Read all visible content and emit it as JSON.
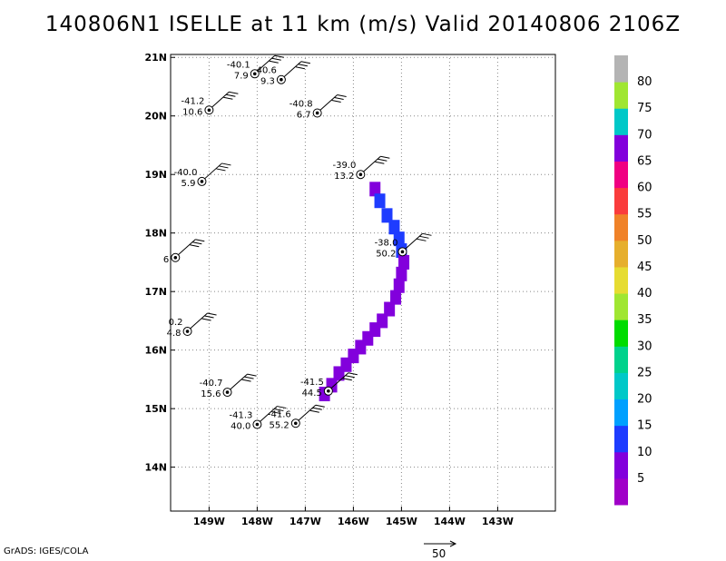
{
  "title": "140806N1 ISELLE at 11 km (m/s) Valid 20140806 2106Z",
  "credit": "GrADS: IGES/COLA",
  "chart_data": {
    "type": "scatter",
    "title": "140806N1 ISELLE at 11 km (m/s) Valid 20140806 2106Z",
    "xlim": [
      -149.8,
      -141.8
    ],
    "ylim": [
      13.25,
      21.05
    ],
    "xticks": [
      -149,
      -148,
      -147,
      -146,
      -145,
      -144,
      -143
    ],
    "xtick_labels": [
      "149W",
      "148W",
      "147W",
      "146W",
      "145W",
      "144W",
      "143W"
    ],
    "yticks": [
      14,
      15,
      16,
      17,
      18,
      19,
      20,
      21
    ],
    "ytick_labels": [
      "14N",
      "15N",
      "16N",
      "17N",
      "18N",
      "19N",
      "20N",
      "21N"
    ],
    "grid": true,
    "colorbar": {
      "labels": [
        "5",
        "10",
        "15",
        "20",
        "25",
        "30",
        "35",
        "40",
        "45",
        "50",
        "55",
        "60",
        "65",
        "70",
        "75",
        "80"
      ],
      "colors": [
        "#a000c8",
        "#8200dc",
        "#1e3cff",
        "#00a0ff",
        "#00c8c8",
        "#00d28c",
        "#00dc00",
        "#a0e632",
        "#e6dc32",
        "#e6af2d",
        "#f08228",
        "#fa3c3c",
        "#f00082",
        "#8200dc",
        "#00c8c8",
        "#a0e632",
        "#b4b4b4"
      ]
    },
    "stations": [
      {
        "lon": -148.05,
        "lat": 20.72,
        "temp": "-40.1",
        "speed": "7.9"
      },
      {
        "lon": -147.5,
        "lat": 20.62,
        "temp": "40.6",
        "speed": "9.3"
      },
      {
        "lon": -149.0,
        "lat": 20.1,
        "temp": "-41.2",
        "speed": "10.6"
      },
      {
        "lon": -146.75,
        "lat": 20.05,
        "temp": "-40.8",
        "speed": "6.7"
      },
      {
        "lon": -149.15,
        "lat": 18.88,
        "temp": "-40.0",
        "speed": "5.9"
      },
      {
        "lon": -145.85,
        "lat": 19.0,
        "temp": "-39.0",
        "speed": "13.2"
      },
      {
        "lon": -149.7,
        "lat": 17.58,
        "temp": "",
        "speed": "6"
      },
      {
        "lon": -144.98,
        "lat": 17.68,
        "temp": "-38.0",
        "speed": "50.2"
      },
      {
        "lon": -149.45,
        "lat": 16.32,
        "temp": "0.2",
        "speed": "4.8"
      },
      {
        "lon": -148.62,
        "lat": 15.28,
        "temp": "-40.7",
        "speed": "15.6"
      },
      {
        "lon": -146.52,
        "lat": 15.3,
        "temp": "-41.5",
        "speed": "44.5"
      },
      {
        "lon": -148.0,
        "lat": 14.73,
        "temp": "-41.3",
        "speed": "40.0"
      },
      {
        "lon": -147.2,
        "lat": 14.75,
        "temp": "-41.6",
        "speed": "55.2"
      }
    ],
    "swath_points": [
      {
        "lon": -145.55,
        "lat": 18.75,
        "speed": 9
      },
      {
        "lon": -145.45,
        "lat": 18.55,
        "speed": 10
      },
      {
        "lon": -145.3,
        "lat": 18.3,
        "speed": 11
      },
      {
        "lon": -145.15,
        "lat": 18.1,
        "speed": 12
      },
      {
        "lon": -145.05,
        "lat": 17.9,
        "speed": 11
      },
      {
        "lon": -145.0,
        "lat": 17.7,
        "speed": 12
      },
      {
        "lon": -144.95,
        "lat": 17.5,
        "speed": 9
      },
      {
        "lon": -145.0,
        "lat": 17.3,
        "speed": 6
      },
      {
        "lon": -145.05,
        "lat": 17.1,
        "speed": 9
      },
      {
        "lon": -145.12,
        "lat": 16.9,
        "speed": 6
      },
      {
        "lon": -145.25,
        "lat": 16.7,
        "speed": 5
      },
      {
        "lon": -145.4,
        "lat": 16.5,
        "speed": 6
      },
      {
        "lon": -145.55,
        "lat": 16.35,
        "speed": 5
      },
      {
        "lon": -145.7,
        "lat": 16.2,
        "speed": 6
      },
      {
        "lon": -145.85,
        "lat": 16.05,
        "speed": 5
      },
      {
        "lon": -146.0,
        "lat": 15.9,
        "speed": 6
      },
      {
        "lon": -146.15,
        "lat": 15.75,
        "speed": 5
      },
      {
        "lon": -146.3,
        "lat": 15.6,
        "speed": 6
      },
      {
        "lon": -146.45,
        "lat": 15.4,
        "speed": 5
      },
      {
        "lon": -146.6,
        "lat": 15.25,
        "speed": 5
      }
    ],
    "reference_vector": {
      "label": "50"
    }
  }
}
